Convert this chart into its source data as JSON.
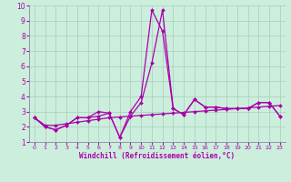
{
  "xlabel": "Windchill (Refroidissement éolien,°C)",
  "x": [
    0,
    1,
    2,
    3,
    4,
    5,
    6,
    7,
    8,
    9,
    10,
    11,
    12,
    13,
    14,
    15,
    16,
    17,
    18,
    19,
    20,
    21,
    22,
    23
  ],
  "line1": [
    2.6,
    2.0,
    1.8,
    2.1,
    2.6,
    2.6,
    3.0,
    2.9,
    1.3,
    3.0,
    4.0,
    9.7,
    8.3,
    3.2,
    2.8,
    3.8,
    3.3,
    3.3,
    3.2,
    3.2,
    3.2,
    3.6,
    3.6,
    2.7
  ],
  "line2": [
    2.6,
    2.0,
    1.8,
    2.1,
    2.6,
    2.6,
    2.7,
    2.9,
    1.3,
    2.7,
    3.6,
    6.2,
    9.7,
    3.2,
    2.8,
    3.8,
    3.3,
    3.3,
    3.2,
    3.2,
    3.2,
    3.6,
    3.6,
    2.7
  ],
  "line3": [
    2.6,
    2.1,
    2.1,
    2.2,
    2.3,
    2.4,
    2.5,
    2.6,
    2.65,
    2.7,
    2.75,
    2.8,
    2.85,
    2.9,
    2.95,
    3.0,
    3.05,
    3.1,
    3.15,
    3.2,
    3.25,
    3.3,
    3.35,
    3.4
  ],
  "line_color": "#aa00aa",
  "bg_color": "#cceedd",
  "grid_color": "#aaccbb",
  "ylim": [
    1,
    10
  ],
  "xlim": [
    -0.5,
    23.5
  ],
  "yticks": [
    1,
    2,
    3,
    4,
    5,
    6,
    7,
    8,
    9,
    10
  ],
  "xticks": [
    0,
    1,
    2,
    3,
    4,
    5,
    6,
    7,
    8,
    9,
    10,
    11,
    12,
    13,
    14,
    15,
    16,
    17,
    18,
    19,
    20,
    21,
    22,
    23
  ]
}
